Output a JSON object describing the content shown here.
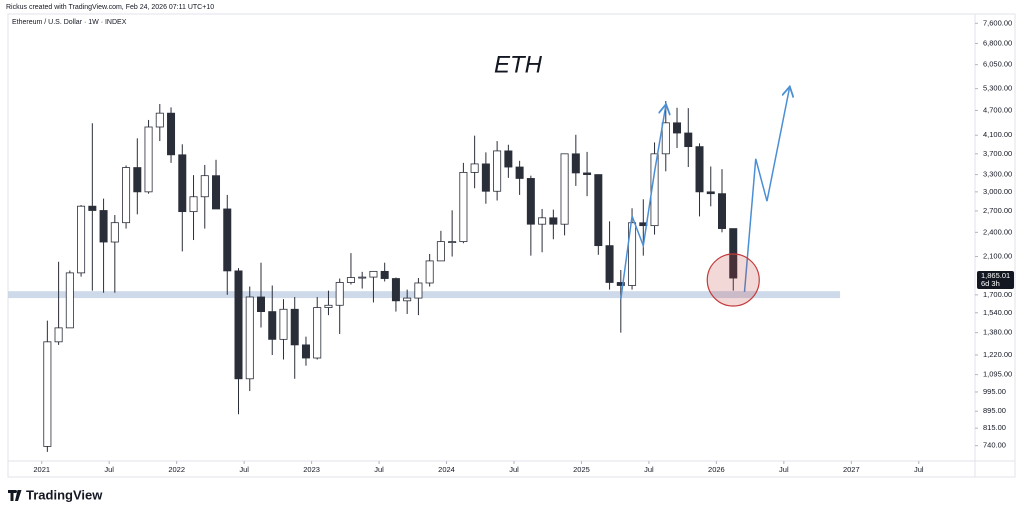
{
  "header": "Rickus created with TradingView.com, Feb 24, 2026 07:11 UTC+10",
  "footer": "TradingView",
  "chart_data": {
    "type": "candlestick",
    "title": "ETH",
    "subtitle": "Ethereum / U.S. Dollar · 1W · INDEX",
    "log_scale": true,
    "grid": false,
    "colors": {
      "up": "#ffffff",
      "down": "#2a2e39",
      "wick": "#2a2e39",
      "projection": "#4a8fd6",
      "support": "#c5d3e6",
      "highlight": "#c23b3b"
    },
    "x": [
      "2021-01",
      "2021-02",
      "2021-03",
      "2021-04",
      "2021-05",
      "2021-06",
      "2021-07",
      "2021-08",
      "2021-09",
      "2021-10",
      "2021-11",
      "2021-12",
      "2022-01",
      "2022-02",
      "2022-03",
      "2022-04",
      "2022-05",
      "2022-06",
      "2022-07",
      "2022-08",
      "2022-09",
      "2022-10",
      "2022-11",
      "2022-12",
      "2023-01",
      "2023-02",
      "2023-03",
      "2023-04",
      "2023-05",
      "2023-06",
      "2023-07",
      "2023-08",
      "2023-09",
      "2023-10",
      "2023-11",
      "2023-12",
      "2024-01",
      "2024-02",
      "2024-03",
      "2024-04",
      "2024-05",
      "2024-06",
      "2024-07",
      "2024-08",
      "2024-09",
      "2024-10",
      "2024-11",
      "2024-12",
      "2025-01",
      "2025-02",
      "2025-03",
      "2025-04",
      "2025-05",
      "2025-06",
      "2025-07",
      "2025-08",
      "2025-09",
      "2025-10",
      "2025-11",
      "2025-12",
      "2026-01",
      "2026-02"
    ],
    "open": [
      737,
      1312,
      1417,
      1919,
      2772,
      2707,
      2275,
      2531,
      3430,
      3000,
      4290,
      4630,
      3680,
      2690,
      2920,
      3280,
      2730,
      1940,
      1070,
      1680,
      1550,
      1330,
      1570,
      1290,
      1200,
      1585,
      1605,
      1820,
      1870,
      1875,
      1935,
      1860,
      1645,
      1670,
      1815,
      2050,
      2280,
      2280,
      3340,
      3500,
      3010,
      3760,
      3440,
      3230,
      2510,
      2600,
      2510,
      3700,
      3330,
      3300,
      2230,
      1820,
      1790,
      2530,
      2490,
      3700,
      4390,
      4150,
      3850,
      3000,
      2970,
      2450
    ],
    "high": [
      1475,
      2040,
      1944,
      2790,
      4380,
      2890,
      2640,
      3470,
      4030,
      4460,
      4870,
      4780,
      3900,
      3290,
      3480,
      3580,
      2950,
      1970,
      1780,
      2030,
      1790,
      1660,
      1680,
      1350,
      1680,
      1740,
      1860,
      2140,
      1930,
      1930,
      2030,
      1870,
      1750,
      1865,
      2130,
      2420,
      2710,
      3520,
      4090,
      3730,
      3970,
      3890,
      3560,
      3280,
      2730,
      2720,
      3680,
      4110,
      3740,
      3300,
      2550,
      1950,
      2740,
      2880,
      3940,
      4950,
      4770,
      4760,
      3920,
      3450,
      3400,
      2450
    ],
    "low": [
      715,
      1290,
      1420,
      1880,
      1740,
      1720,
      1720,
      2450,
      2650,
      2970,
      3970,
      3520,
      2160,
      2300,
      2450,
      2730,
      1700,
      880,
      1000,
      1420,
      1220,
      1190,
      1070,
      1150,
      1190,
      1520,
      1370,
      1800,
      1760,
      1630,
      1830,
      1550,
      1530,
      1520,
      1780,
      2050,
      2100,
      2260,
      3060,
      2810,
      2860,
      3240,
      2950,
      2110,
      2150,
      2310,
      2360,
      3100,
      2930,
      2120,
      1750,
      1380,
      1750,
      2110,
      2370,
      3360,
      3820,
      3440,
      2620,
      2770,
      2400,
      1740
    ],
    "close": [
      1312,
      1417,
      1919,
      2772,
      2707,
      2275,
      2531,
      3430,
      3000,
      4290,
      4630,
      3680,
      2690,
      2920,
      3280,
      2730,
      1940,
      1070,
      1680,
      1550,
      1330,
      1570,
      1290,
      1200,
      1585,
      1605,
      1820,
      1870,
      1875,
      1935,
      1860,
      1645,
      1670,
      1815,
      2050,
      2280,
      2280,
      3340,
      3500,
      3010,
      3760,
      3440,
      3230,
      2510,
      2600,
      2510,
      3700,
      3330,
      3300,
      2230,
      1820,
      1790,
      2530,
      2490,
      3700,
      4390,
      4150,
      3850,
      3000,
      2970,
      2450,
      1865
    ],
    "xlim": [
      "2020-10",
      "2027-12"
    ],
    "xticks": [
      {
        "value": "2021-01",
        "label": "2021"
      },
      {
        "value": "2021-07",
        "label": "Jul"
      },
      {
        "value": "2022-01",
        "label": "2022"
      },
      {
        "value": "2022-07",
        "label": "Jul"
      },
      {
        "value": "2023-01",
        "label": "2023"
      },
      {
        "value": "2023-07",
        "label": "Jul"
      },
      {
        "value": "2024-01",
        "label": "2024"
      },
      {
        "value": "2024-07",
        "label": "Jul"
      },
      {
        "value": "2025-01",
        "label": "2025"
      },
      {
        "value": "2025-07",
        "label": "Jul"
      },
      {
        "value": "2026-01",
        "label": "2026"
      },
      {
        "value": "2026-07",
        "label": "Jul"
      },
      {
        "value": "2027-01",
        "label": "2027"
      },
      {
        "value": "2027-07",
        "label": "Jul"
      }
    ],
    "ylim": [
      680,
      8000
    ],
    "yticks": [
      {
        "value": 740,
        "label": "740.00"
      },
      {
        "value": 815,
        "label": "815.00"
      },
      {
        "value": 895,
        "label": "895.00"
      },
      {
        "value": 995,
        "label": "995.00"
      },
      {
        "value": 1095,
        "label": "1,095.00"
      },
      {
        "value": 1220,
        "label": "1,220.00"
      },
      {
        "value": 1380,
        "label": "1,380.00"
      },
      {
        "value": 1540,
        "label": "1,540.00"
      },
      {
        "value": 1700,
        "label": "1,700.00"
      },
      {
        "value": 2100,
        "label": "2,100.00"
      },
      {
        "value": 2400,
        "label": "2,400.00"
      },
      {
        "value": 2700,
        "label": "2,700.00"
      },
      {
        "value": 3000,
        "label": "3,000.00"
      },
      {
        "value": 3300,
        "label": "3,300.00"
      },
      {
        "value": 3700,
        "label": "3,700.00"
      },
      {
        "value": 4100,
        "label": "4,100.00"
      },
      {
        "value": 4700,
        "label": "4,700.00"
      },
      {
        "value": 5300,
        "label": "5,300.00"
      },
      {
        "value": 6050,
        "label": "6,050.00"
      },
      {
        "value": 6800,
        "label": "6,800.00"
      },
      {
        "value": 7600,
        "label": "7,600.00"
      }
    ],
    "last_price": {
      "value": 1865.01,
      "label": "1,865.01"
    },
    "countdown": "6d 3h",
    "support_zone": {
      "low": 1670,
      "high": 1735,
      "x_end": "2026-12"
    },
    "projections": [
      {
        "x": [
          "2025-04",
          "2025-05",
          "2025-06",
          "2025-07",
          "2025-08"
        ],
        "price": [
          1660,
          2625,
          2230,
          3350,
          4825
        ]
      },
      {
        "x": [
          "2026-03",
          "2026-04",
          "2026-05",
          "2026-07"
        ],
        "price": [
          1728,
          3600,
          2850,
          5320
        ]
      }
    ],
    "highlight": {
      "x": "2026-02",
      "price": 1845
    }
  }
}
